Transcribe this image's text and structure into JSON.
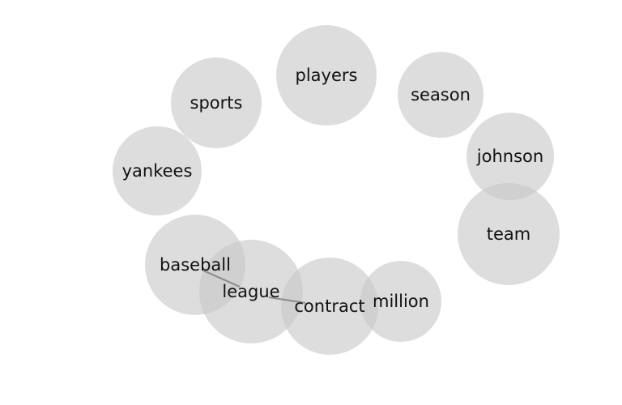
{
  "nodes": [
    {
      "id": "players",
      "label": "players"
    },
    {
      "id": "sports",
      "label": "sports"
    },
    {
      "id": "season",
      "label": "season"
    },
    {
      "id": "yankees",
      "label": "yankees"
    },
    {
      "id": "johnson",
      "label": "johnson"
    },
    {
      "id": "team",
      "label": "team"
    },
    {
      "id": "baseball",
      "label": "baseball"
    },
    {
      "id": "league",
      "label": "league"
    },
    {
      "id": "contract",
      "label": "contract"
    },
    {
      "id": "million",
      "label": "million"
    }
  ],
  "edges": [
    {
      "from": "baseball",
      "to": "league"
    },
    {
      "from": "league",
      "to": "contract"
    }
  ],
  "colors": {
    "node_fill": "#c8c8c8",
    "edge": "#7a7a7a",
    "text": "#111111"
  }
}
